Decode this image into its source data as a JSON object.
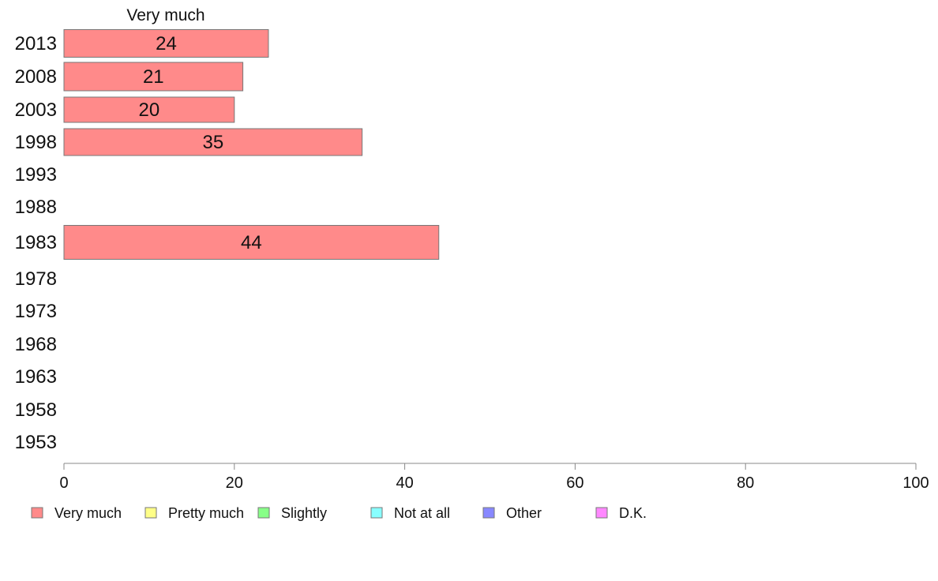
{
  "chart_data": {
    "type": "bar",
    "orientation": "horizontal",
    "stacked": true,
    "categories": [
      "2013",
      "2008",
      "2003",
      "1998",
      "1993",
      "1988",
      "1983",
      "1978",
      "1973",
      "1968",
      "1963",
      "1958",
      "1953"
    ],
    "series": [
      {
        "name": "Very much",
        "color": "#ff8a8a",
        "values": [
          24,
          21,
          20,
          35,
          null,
          null,
          44,
          null,
          null,
          null,
          null,
          null,
          null
        ]
      },
      {
        "name": "Pretty much",
        "color": "#ffff88",
        "values": [
          null,
          null,
          null,
          null,
          null,
          null,
          null,
          null,
          null,
          null,
          null,
          null,
          null
        ]
      },
      {
        "name": "Slightly",
        "color": "#88ff88",
        "values": [
          null,
          null,
          null,
          null,
          null,
          null,
          null,
          null,
          null,
          null,
          null,
          null,
          null
        ]
      },
      {
        "name": "Not at all",
        "color": "#88ffff",
        "values": [
          null,
          null,
          null,
          null,
          null,
          null,
          null,
          null,
          null,
          null,
          null,
          null,
          null
        ]
      },
      {
        "name": "Other",
        "color": "#8888ff",
        "values": [
          null,
          null,
          null,
          null,
          null,
          null,
          null,
          null,
          null,
          null,
          null,
          null,
          null
        ]
      },
      {
        "name": "D.K.",
        "color": "#ff88ff",
        "values": [
          null,
          null,
          null,
          null,
          null,
          null,
          null,
          null,
          null,
          null,
          null,
          null,
          null
        ]
      }
    ],
    "bar_labels": [
      24,
      21,
      20,
      35,
      null,
      null,
      44,
      null,
      null,
      null,
      null,
      null,
      null
    ],
    "series_header": "Very much",
    "xlim": [
      0,
      100
    ],
    "xticks": [
      0,
      20,
      40,
      60,
      80,
      100
    ],
    "grid": false,
    "legend_position": "bottom",
    "bar_stroke": "#777777",
    "axis_color": "#888888"
  }
}
